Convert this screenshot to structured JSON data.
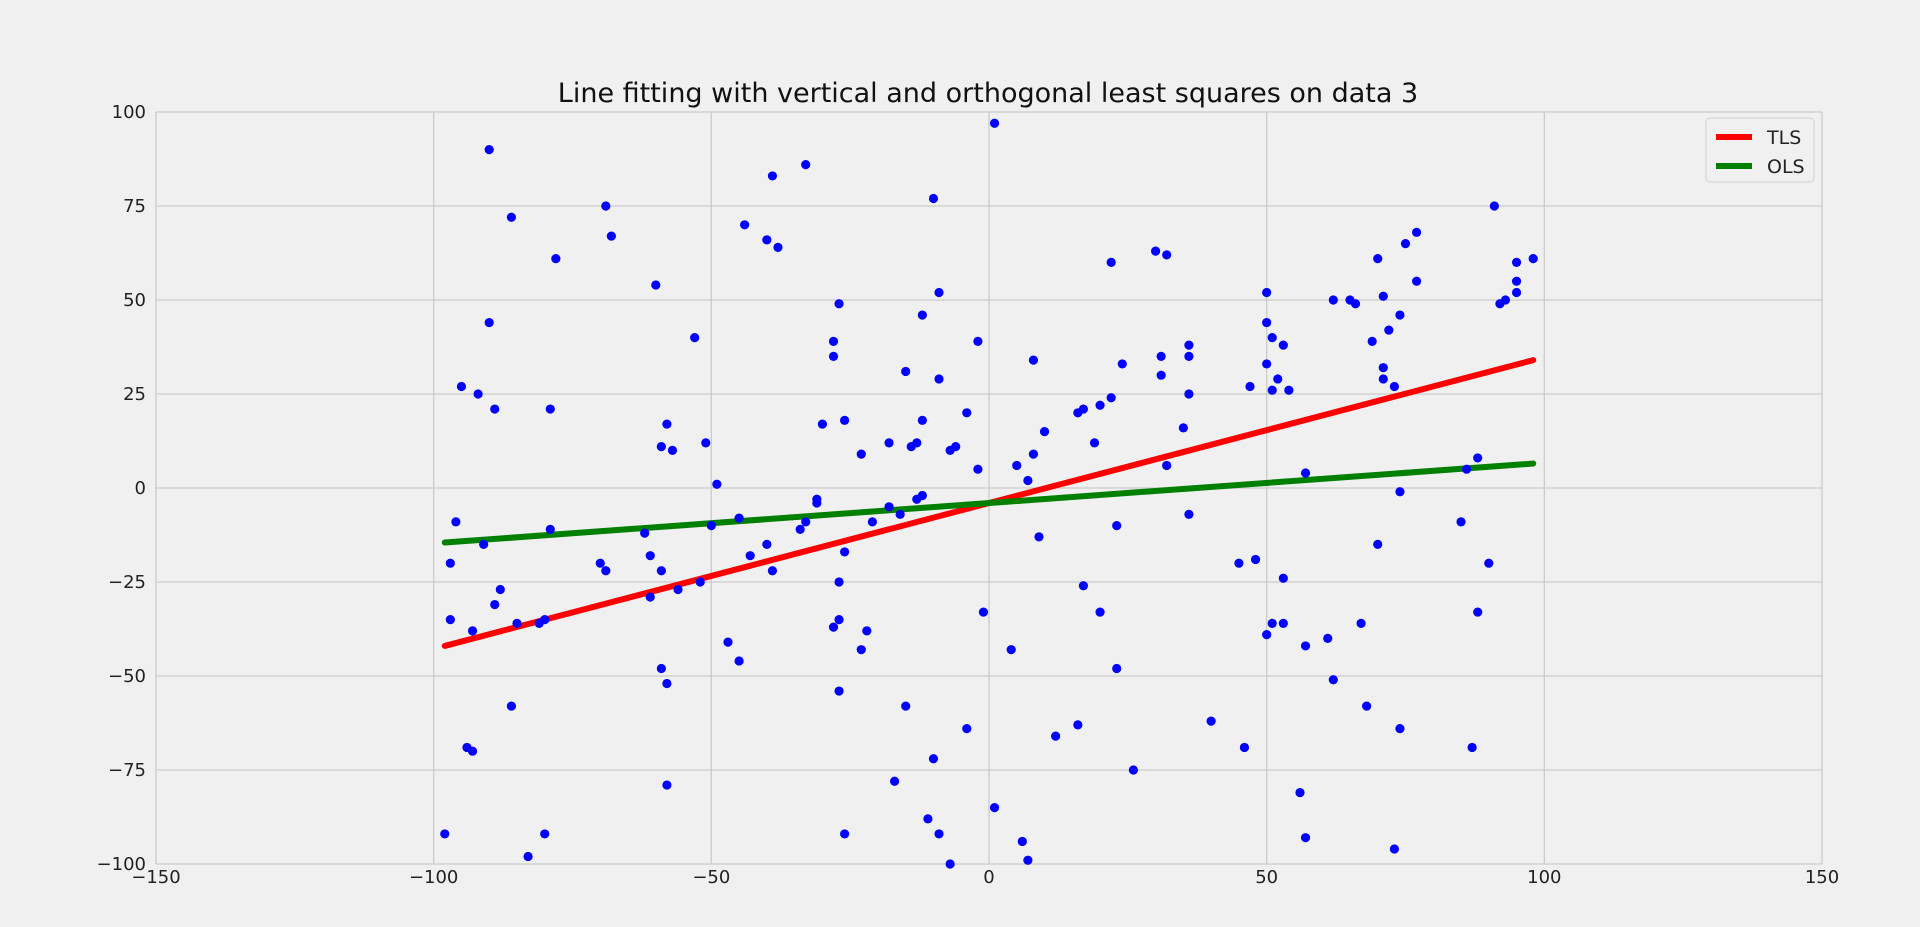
{
  "chart_data": {
    "type": "scatter",
    "title": "Line fitting with vertical and orthogonal least squares on data 3",
    "xlabel": "",
    "ylabel": "",
    "xlim": [
      -150,
      150
    ],
    "ylim": [
      -100,
      100
    ],
    "x_ticks": [
      -150,
      -100,
      -50,
      0,
      50,
      100,
      150
    ],
    "y_ticks": [
      -100,
      -75,
      -50,
      -25,
      0,
      25,
      50,
      75,
      100
    ],
    "x_tick_labels": [
      "−150",
      "−100",
      "−50",
      "0",
      "50",
      "100",
      "150"
    ],
    "y_tick_labels": [
      "−100",
      "−75",
      "−50",
      "−25",
      "0",
      "25",
      "50",
      "75",
      "100"
    ],
    "grid": true,
    "legend_position": "top-right",
    "points": {
      "color": "#0000ff",
      "xy": [
        [
          -98,
          -92
        ],
        [
          -97,
          -20
        ],
        [
          -97,
          -35
        ],
        [
          -96,
          -9
        ],
        [
          -95,
          27
        ],
        [
          -94,
          -69
        ],
        [
          -93,
          -70
        ],
        [
          -93,
          -38
        ],
        [
          -92,
          25
        ],
        [
          -91,
          -15
        ],
        [
          -90,
          44
        ],
        [
          -90,
          90
        ],
        [
          -89,
          -31
        ],
        [
          -89,
          21
        ],
        [
          -88,
          -27
        ],
        [
          -86,
          72
        ],
        [
          -86,
          -58
        ],
        [
          -85,
          -36
        ],
        [
          -83,
          -98
        ],
        [
          -81,
          -36
        ],
        [
          -80,
          -35
        ],
        [
          -80,
          -92
        ],
        [
          -79,
          21
        ],
        [
          -79,
          -11
        ],
        [
          -78,
          61
        ],
        [
          -70,
          -20
        ],
        [
          -69,
          -22
        ],
        [
          -69,
          75
        ],
        [
          -68,
          67
        ],
        [
          -62,
          -12
        ],
        [
          -61,
          -18
        ],
        [
          -61,
          -29
        ],
        [
          -60,
          54
        ],
        [
          -59,
          11
        ],
        [
          -59,
          -22
        ],
        [
          -59,
          -48
        ],
        [
          -58,
          -52
        ],
        [
          -58,
          -79
        ],
        [
          -58,
          17
        ],
        [
          -57,
          10
        ],
        [
          -56,
          -27
        ],
        [
          -53,
          40
        ],
        [
          -52,
          -25
        ],
        [
          -51,
          12
        ],
        [
          -50,
          -10
        ],
        [
          -49,
          1
        ],
        [
          -47,
          -41
        ],
        [
          -45,
          -46
        ],
        [
          -45,
          -8
        ],
        [
          -44,
          70
        ],
        [
          -43,
          -18
        ],
        [
          -40,
          -15
        ],
        [
          -40,
          66
        ],
        [
          -39,
          83
        ],
        [
          -39,
          -22
        ],
        [
          -38,
          64
        ],
        [
          -34,
          -11
        ],
        [
          -33,
          86
        ],
        [
          -33,
          -9
        ],
        [
          -31,
          -4
        ],
        [
          -31,
          -3
        ],
        [
          -30,
          17
        ],
        [
          -28,
          -37
        ],
        [
          -28,
          39
        ],
        [
          -28,
          35
        ],
        [
          -27,
          49
        ],
        [
          -27,
          -35
        ],
        [
          -27,
          -54
        ],
        [
          -27,
          -25
        ],
        [
          -26,
          18
        ],
        [
          -26,
          -17
        ],
        [
          -26,
          -92
        ],
        [
          -23,
          -43
        ],
        [
          -23,
          9
        ],
        [
          -22,
          -38
        ],
        [
          -21,
          -9
        ],
        [
          -18,
          12
        ],
        [
          -18,
          -5
        ],
        [
          -17,
          -78
        ],
        [
          -16,
          -7
        ],
        [
          -15,
          -58
        ],
        [
          -15,
          31
        ],
        [
          -14,
          11
        ],
        [
          -13,
          12
        ],
        [
          -13,
          -3
        ],
        [
          -12,
          46
        ],
        [
          -12,
          18
        ],
        [
          -12,
          -2
        ],
        [
          -11,
          -88
        ],
        [
          -10,
          77
        ],
        [
          -10,
          -72
        ],
        [
          -9,
          52
        ],
        [
          -9,
          29
        ],
        [
          -9,
          -92
        ],
        [
          -7,
          10
        ],
        [
          -7,
          -100
        ],
        [
          -6,
          11
        ],
        [
          -4,
          20
        ],
        [
          -4,
          -64
        ],
        [
          -2,
          39
        ],
        [
          -2,
          5
        ],
        [
          -1,
          -33
        ],
        [
          1,
          97
        ],
        [
          1,
          -85
        ],
        [
          4,
          -43
        ],
        [
          5,
          6
        ],
        [
          6,
          -94
        ],
        [
          7,
          2
        ],
        [
          7,
          -99
        ],
        [
          8,
          9
        ],
        [
          8,
          34
        ],
        [
          9,
          -13
        ],
        [
          10,
          15
        ],
        [
          12,
          -66
        ],
        [
          16,
          -63
        ],
        [
          16,
          20
        ],
        [
          17,
          21
        ],
        [
          17,
          -26
        ],
        [
          19,
          12
        ],
        [
          20,
          22
        ],
        [
          20,
          -33
        ],
        [
          22,
          60
        ],
        [
          22,
          24
        ],
        [
          23,
          -10
        ],
        [
          23,
          -48
        ],
        [
          24,
          33
        ],
        [
          26,
          -75
        ],
        [
          30,
          63
        ],
        [
          31,
          35
        ],
        [
          31,
          30
        ],
        [
          32,
          62
        ],
        [
          32,
          6
        ],
        [
          35,
          16
        ],
        [
          36,
          35
        ],
        [
          36,
          -7
        ],
        [
          36,
          38
        ],
        [
          36,
          25
        ],
        [
          40,
          -62
        ],
        [
          45,
          -20
        ],
        [
          46,
          -69
        ],
        [
          47,
          27
        ],
        [
          48,
          -19
        ],
        [
          50,
          44
        ],
        [
          50,
          52
        ],
        [
          50,
          33
        ],
        [
          50,
          -39
        ],
        [
          51,
          26
        ],
        [
          51,
          40
        ],
        [
          51,
          -36
        ],
        [
          52,
          29
        ],
        [
          53,
          38
        ],
        [
          53,
          -24
        ],
        [
          53,
          -36
        ],
        [
          54,
          26
        ],
        [
          56,
          -81
        ],
        [
          57,
          4
        ],
        [
          57,
          -42
        ],
        [
          57,
          -93
        ],
        [
          61,
          -40
        ],
        [
          62,
          50
        ],
        [
          62,
          -51
        ],
        [
          65,
          50
        ],
        [
          66,
          49
        ],
        [
          67,
          -36
        ],
        [
          68,
          -58
        ],
        [
          69,
          39
        ],
        [
          70,
          -15
        ],
        [
          70,
          61
        ],
        [
          71,
          32
        ],
        [
          71,
          29
        ],
        [
          71,
          51
        ],
        [
          72,
          42
        ],
        [
          73,
          27
        ],
        [
          73,
          -96
        ],
        [
          74,
          46
        ],
        [
          74,
          -1
        ],
        [
          74,
          -64
        ],
        [
          75,
          65
        ],
        [
          77,
          55
        ],
        [
          77,
          68
        ],
        [
          85,
          -9
        ],
        [
          86,
          5
        ],
        [
          87,
          -69
        ],
        [
          88,
          8
        ],
        [
          88,
          -33
        ],
        [
          90,
          -20
        ],
        [
          91,
          75
        ],
        [
          92,
          49
        ],
        [
          93,
          50
        ],
        [
          95,
          60
        ],
        [
          95,
          55
        ],
        [
          95,
          52
        ],
        [
          98,
          61
        ]
      ]
    },
    "series": [
      {
        "name": "TLS",
        "type": "line",
        "color": "#ff0000",
        "x": [
          -98,
          98
        ],
        "y": [
          -42,
          34
        ]
      },
      {
        "name": "OLS",
        "type": "line",
        "color": "#008000",
        "x": [
          -98,
          98
        ],
        "y": [
          -14.5,
          6.5
        ]
      }
    ]
  }
}
